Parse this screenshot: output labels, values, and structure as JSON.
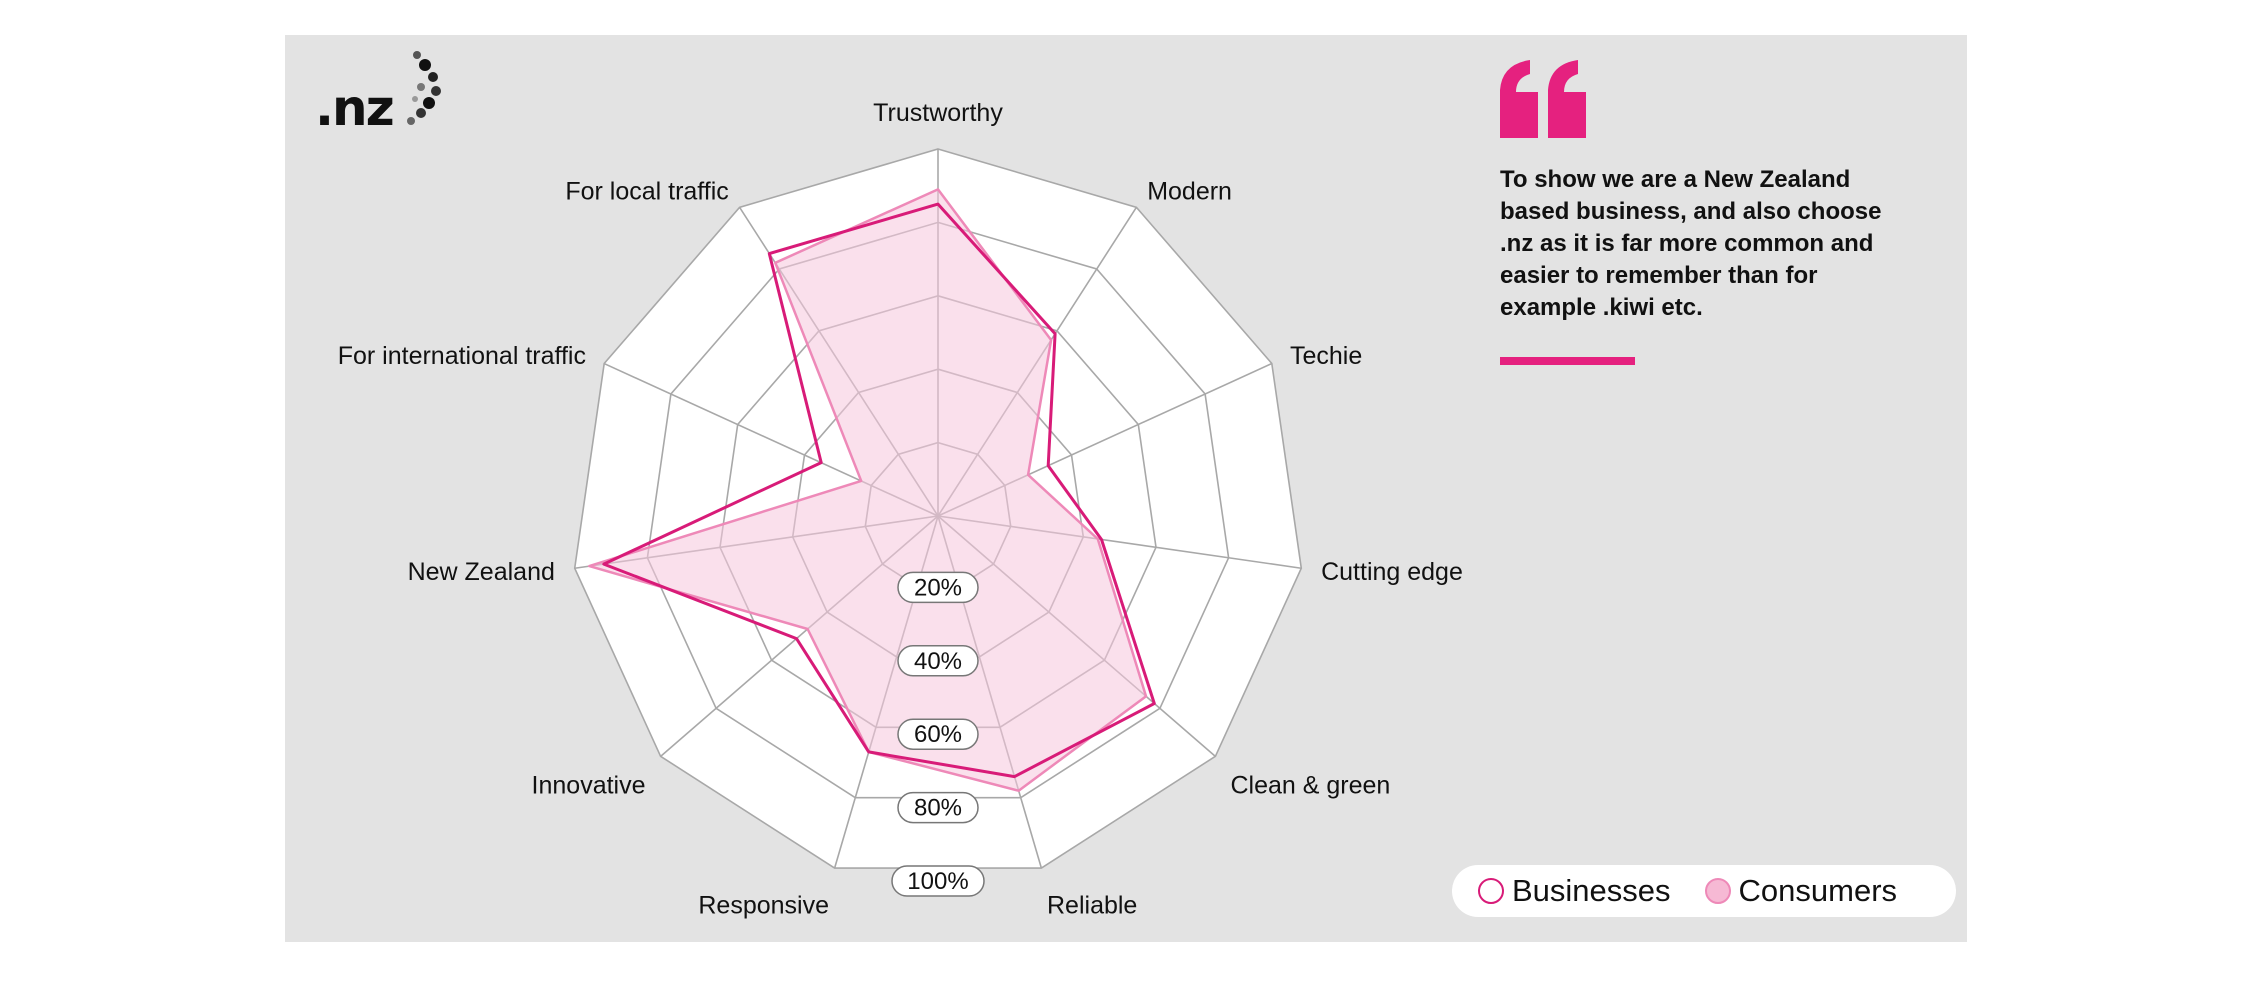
{
  "logo": {
    "text": ".nz"
  },
  "quote": {
    "text": "To show we are a New Zealand based business, and also choose .nz as it is far more common and easier to remember than for example .kiwi etc."
  },
  "colors": {
    "background": "#e3e3e3",
    "grid_fill": "#ffffff",
    "grid_line": "#a8a8a8",
    "businesses_line": "#d81b78",
    "consumers_fill": "#f6c6dc",
    "consumers_line": "#ee89b8",
    "accent": "#e5217f"
  },
  "chart_data": {
    "type": "radar",
    "categories": [
      "Trustworthy",
      "Modern",
      "Techie",
      "Cutting edge",
      "Clean & green",
      "Reliable",
      "Responsive",
      "Innovative",
      "New Zealand",
      "For international traffic",
      "For local traffic"
    ],
    "rlim": [
      0,
      100
    ],
    "r_ticks": [
      20,
      40,
      60,
      80,
      100
    ],
    "r_tick_labels": [
      "20%",
      "40%",
      "60%",
      "80%",
      "100%"
    ],
    "series": [
      {
        "name": "Businesses",
        "style": "line",
        "values": [
          85,
          59,
          33,
          45,
          78,
          74,
          67,
          51,
          92,
          35,
          85
        ]
      },
      {
        "name": "Consumers",
        "style": "filled-area",
        "values": [
          89,
          57,
          27,
          44,
          75,
          78,
          67,
          47,
          96,
          23,
          82
        ]
      }
    ],
    "legend": {
      "position": "bottom-right"
    }
  }
}
